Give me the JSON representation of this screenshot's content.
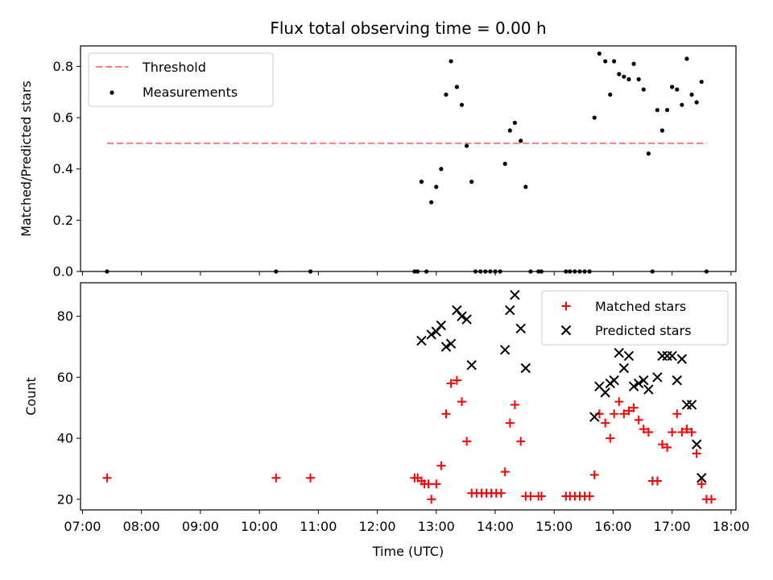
{
  "title": "Flux total observing time = 0.00 h",
  "xlabel": "Time (UTC)",
  "colors": {
    "threshold": "#ff7b7b",
    "measurement": "#000000",
    "matched": "#ff0000",
    "predicted": "#000000"
  },
  "chart_data": [
    {
      "type": "scatter",
      "title": "Flux total observing time = 0.00 h",
      "ylabel": "Matched/Predicted stars",
      "ylim": [
        0,
        0.88
      ],
      "yticks": [
        "0.0",
        "0.2",
        "0.4",
        "0.6",
        "0.8"
      ],
      "legend_position": "top-left",
      "legend": [
        "Threshold",
        "Measurements"
      ],
      "threshold": {
        "name": "Threshold",
        "value": 0.5,
        "x_range": [
          "07:25",
          "17:35"
        ]
      },
      "series": [
        {
          "name": "Measurements",
          "points": [
            [
              "07:25",
              0.0
            ],
            [
              "10:17",
              0.0
            ],
            [
              "10:52",
              0.0
            ],
            [
              "12:38",
              0.0
            ],
            [
              "12:41",
              0.0
            ],
            [
              "12:45",
              0.35
            ],
            [
              "12:50",
              0.0
            ],
            [
              "12:55",
              0.27
            ],
            [
              "13:00",
              0.33
            ],
            [
              "13:05",
              0.4
            ],
            [
              "13:10",
              0.69
            ],
            [
              "13:15",
              0.82
            ],
            [
              "13:21",
              0.72
            ],
            [
              "13:26",
              0.65
            ],
            [
              "13:31",
              0.49
            ],
            [
              "13:36",
              0.35
            ],
            [
              "13:40",
              0.0
            ],
            [
              "13:45",
              0.0
            ],
            [
              "13:50",
              0.0
            ],
            [
              "13:55",
              0.0
            ],
            [
              "14:00",
              0.0
            ],
            [
              "14:05",
              0.0
            ],
            [
              "14:10",
              0.42
            ],
            [
              "14:15",
              0.55
            ],
            [
              "14:20",
              0.58
            ],
            [
              "14:26",
              0.51
            ],
            [
              "14:31",
              0.33
            ],
            [
              "14:36",
              0.0
            ],
            [
              "14:44",
              0.0
            ],
            [
              "14:47",
              0.0
            ],
            [
              "15:12",
              0.0
            ],
            [
              "15:16",
              0.0
            ],
            [
              "15:21",
              0.0
            ],
            [
              "15:26",
              0.0
            ],
            [
              "15:31",
              0.0
            ],
            [
              "15:36",
              0.0
            ],
            [
              "15:41",
              0.6
            ],
            [
              "15:46",
              0.85
            ],
            [
              "15:52",
              0.82
            ],
            [
              "15:57",
              0.69
            ],
            [
              "16:01",
              0.82
            ],
            [
              "16:06",
              0.77
            ],
            [
              "16:11",
              0.76
            ],
            [
              "16:16",
              0.75
            ],
            [
              "16:21",
              0.81
            ],
            [
              "16:26",
              0.75
            ],
            [
              "16:31",
              0.71
            ],
            [
              "16:36",
              0.46
            ],
            [
              "16:40",
              0.0
            ],
            [
              "16:45",
              0.63
            ],
            [
              "16:50",
              0.55
            ],
            [
              "16:55",
              0.63
            ],
            [
              "17:00",
              0.72
            ],
            [
              "17:05",
              0.71
            ],
            [
              "17:10",
              0.65
            ],
            [
              "17:15",
              0.83
            ],
            [
              "17:20",
              0.69
            ],
            [
              "17:25",
              0.66
            ],
            [
              "17:30",
              0.74
            ],
            [
              "17:35",
              0.0
            ]
          ]
        }
      ]
    },
    {
      "type": "scatter",
      "ylabel": "Count",
      "xlabel": "Time (UTC)",
      "ylim": [
        16.5,
        91
      ],
      "yticks": [
        "20",
        "40",
        "60",
        "80"
      ],
      "xlim": [
        "06:58",
        "18:05"
      ],
      "xticks": [
        "07:00",
        "08:00",
        "09:00",
        "10:00",
        "11:00",
        "12:00",
        "13:00",
        "14:00",
        "15:00",
        "16:00",
        "17:00",
        "18:00"
      ],
      "legend_position": "top-right",
      "legend": [
        "Matched stars",
        "Predicted stars"
      ],
      "series": [
        {
          "name": "Matched stars",
          "marker": "plus",
          "points": [
            [
              "07:25",
              27
            ],
            [
              "10:17",
              27
            ],
            [
              "10:52",
              27
            ],
            [
              "12:38",
              27
            ],
            [
              "12:41",
              27
            ],
            [
              "12:45",
              26
            ],
            [
              "12:48",
              25
            ],
            [
              "12:52",
              25
            ],
            [
              "12:55",
              20
            ],
            [
              "13:00",
              25
            ],
            [
              "13:05",
              31
            ],
            [
              "13:10",
              48
            ],
            [
              "13:15",
              58
            ],
            [
              "13:21",
              59
            ],
            [
              "13:26",
              52
            ],
            [
              "13:31",
              39
            ],
            [
              "13:36",
              22
            ],
            [
              "13:41",
              22
            ],
            [
              "13:46",
              22
            ],
            [
              "13:51",
              22
            ],
            [
              "13:56",
              22
            ],
            [
              "14:01",
              22
            ],
            [
              "14:06",
              22
            ],
            [
              "14:10",
              29
            ],
            [
              "14:15",
              45
            ],
            [
              "14:20",
              51
            ],
            [
              "14:26",
              39
            ],
            [
              "14:31",
              21
            ],
            [
              "14:36",
              21
            ],
            [
              "14:44",
              21
            ],
            [
              "14:47",
              21
            ],
            [
              "15:12",
              21
            ],
            [
              "15:16",
              21
            ],
            [
              "15:21",
              21
            ],
            [
              "15:26",
              21
            ],
            [
              "15:31",
              21
            ],
            [
              "15:36",
              21
            ],
            [
              "15:41",
              28
            ],
            [
              "15:46",
              48
            ],
            [
              "15:52",
              45
            ],
            [
              "15:57",
              40
            ],
            [
              "16:01",
              48
            ],
            [
              "16:06",
              52
            ],
            [
              "16:11",
              48
            ],
            [
              "16:16",
              49
            ],
            [
              "16:21",
              50
            ],
            [
              "16:26",
              46
            ],
            [
              "16:31",
              43
            ],
            [
              "16:36",
              42
            ],
            [
              "16:40",
              26
            ],
            [
              "16:45",
              26
            ],
            [
              "16:50",
              38
            ],
            [
              "16:55",
              37
            ],
            [
              "17:00",
              42
            ],
            [
              "17:05",
              48
            ],
            [
              "17:10",
              42
            ],
            [
              "17:15",
              43
            ],
            [
              "17:20",
              42
            ],
            [
              "17:25",
              35
            ],
            [
              "17:30",
              25
            ],
            [
              "17:35",
              20
            ],
            [
              "17:40",
              20
            ]
          ]
        },
        {
          "name": "Predicted stars",
          "marker": "x",
          "points": [
            [
              "12:45",
              72
            ],
            [
              "12:55",
              74
            ],
            [
              "13:00",
              75
            ],
            [
              "13:05",
              77
            ],
            [
              "13:10",
              70
            ],
            [
              "13:15",
              71
            ],
            [
              "13:21",
              82
            ],
            [
              "13:26",
              80
            ],
            [
              "13:31",
              79
            ],
            [
              "13:36",
              64
            ],
            [
              "14:10",
              69
            ],
            [
              "14:15",
              82
            ],
            [
              "14:20",
              87
            ],
            [
              "14:26",
              76
            ],
            [
              "14:31",
              63
            ],
            [
              "15:41",
              47
            ],
            [
              "15:46",
              57
            ],
            [
              "15:52",
              55
            ],
            [
              "15:57",
              58
            ],
            [
              "16:01",
              59
            ],
            [
              "16:06",
              68
            ],
            [
              "16:11",
              63
            ],
            [
              "16:16",
              67
            ],
            [
              "16:21",
              57
            ],
            [
              "16:26",
              58
            ],
            [
              "16:31",
              59
            ],
            [
              "16:36",
              56
            ],
            [
              "16:45",
              60
            ],
            [
              "16:50",
              67
            ],
            [
              "16:55",
              67
            ],
            [
              "17:00",
              67
            ],
            [
              "17:05",
              59
            ],
            [
              "17:10",
              66
            ],
            [
              "17:15",
              51
            ],
            [
              "17:20",
              51
            ],
            [
              "17:25",
              38
            ],
            [
              "17:30",
              27
            ]
          ]
        }
      ]
    }
  ]
}
